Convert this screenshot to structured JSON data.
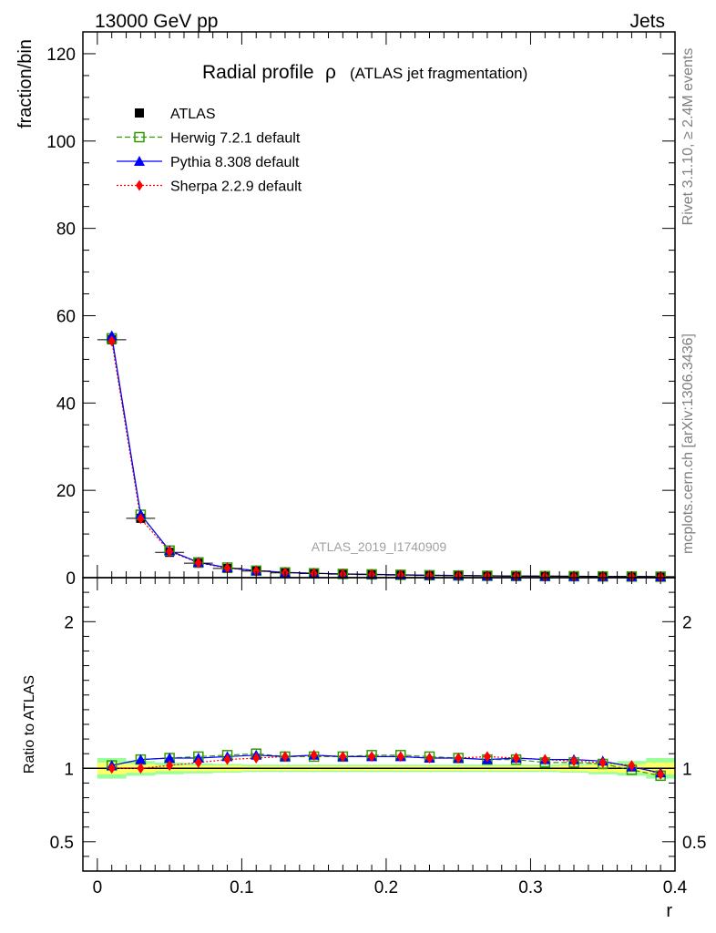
{
  "header": {
    "left": "13000 GeV pp",
    "right": "Jets"
  },
  "title": {
    "main": "Radial profile",
    "symbol": "ρ",
    "sub": "(ATLAS jet fragmentation)"
  },
  "side_labels": {
    "top": "Rivet 3.1.10, ≥ 2.4M events",
    "bottom": "mcplots.cern.ch [arXiv:1306.3436]"
  },
  "watermark": "ATLAS_2019_I1740909",
  "colors": {
    "data": "#000000",
    "herwig": "#339900",
    "pythia": "#0000ff",
    "sherpa": "#ff0000",
    "band_inner": "#ffff66",
    "band_outer": "#99ff99"
  },
  "chart_data": [
    {
      "type": "line",
      "ylabel": "fraction/bin",
      "xlim": [
        -0.01,
        0.4
      ],
      "ylim": [
        0,
        125
      ],
      "yticks": [
        0,
        20,
        40,
        60,
        80,
        100,
        120
      ],
      "x": [
        0.01,
        0.03,
        0.05,
        0.07,
        0.09,
        0.11,
        0.13,
        0.15,
        0.17,
        0.19,
        0.21,
        0.23,
        0.25,
        0.27,
        0.29,
        0.31,
        0.33,
        0.35,
        0.37,
        0.39
      ],
      "series": [
        {
          "name": "ATLAS",
          "key": "atlas",
          "values": [
            54.5,
            13.6,
            5.8,
            3.3,
            2.1,
            1.5,
            1.1,
            0.95,
            0.8,
            0.7,
            0.6,
            0.5,
            0.45,
            0.4,
            0.35,
            0.33,
            0.3,
            0.27,
            0.25,
            0.23
          ]
        },
        {
          "name": "Herwig 7.2.1 default",
          "key": "herwig",
          "values": [
            54.8,
            14.4,
            6.2,
            3.5,
            2.3,
            1.6,
            1.2,
            1.0,
            0.85,
            0.75,
            0.65,
            0.55,
            0.5,
            0.42,
            0.38,
            0.35,
            0.32,
            0.28,
            0.25,
            0.22
          ]
        },
        {
          "name": "Pythia 8.308 default",
          "key": "pythia",
          "values": [
            55.4,
            14.5,
            6.2,
            3.5,
            2.3,
            1.6,
            1.2,
            1.0,
            0.85,
            0.75,
            0.65,
            0.55,
            0.5,
            0.42,
            0.38,
            0.35,
            0.32,
            0.28,
            0.25,
            0.22
          ]
        },
        {
          "name": "Sherpa 2.2.9 default",
          "key": "sherpa",
          "values": [
            54.2,
            13.5,
            6.0,
            3.4,
            2.2,
            1.55,
            1.15,
            0.98,
            0.82,
            0.72,
            0.62,
            0.52,
            0.47,
            0.41,
            0.36,
            0.34,
            0.31,
            0.27,
            0.25,
            0.22
          ]
        }
      ]
    },
    {
      "type": "line",
      "xlabel": "r",
      "ylabel": "Ratio to ATLAS",
      "xlim": [
        -0.01,
        0.4
      ],
      "ylim": [
        0.3,
        2.3
      ],
      "yticks": [
        0.5,
        1,
        2
      ],
      "xticks": [
        0,
        0.1,
        0.2,
        0.3,
        0.4
      ],
      "x": [
        0.01,
        0.03,
        0.05,
        0.07,
        0.09,
        0.11,
        0.13,
        0.15,
        0.17,
        0.19,
        0.21,
        0.23,
        0.25,
        0.27,
        0.29,
        0.31,
        0.33,
        0.35,
        0.37,
        0.39
      ],
      "band_inner": [
        0.04,
        0.03,
        0.02,
        0.02,
        0.02,
        0.015,
        0.015,
        0.015,
        0.015,
        0.015,
        0.015,
        0.015,
        0.015,
        0.015,
        0.015,
        0.015,
        0.02,
        0.025,
        0.03,
        0.04
      ],
      "band_outer": [
        0.07,
        0.05,
        0.04,
        0.035,
        0.03,
        0.025,
        0.025,
        0.025,
        0.025,
        0.025,
        0.025,
        0.025,
        0.025,
        0.025,
        0.025,
        0.025,
        0.03,
        0.04,
        0.05,
        0.07
      ],
      "series": [
        {
          "name": "Herwig 7.2.1 default",
          "key": "herwig",
          "values": [
            1.02,
            1.06,
            1.07,
            1.08,
            1.09,
            1.1,
            1.08,
            1.08,
            1.08,
            1.09,
            1.09,
            1.08,
            1.07,
            1.06,
            1.06,
            1.04,
            1.04,
            1.03,
            0.99,
            0.95
          ]
        },
        {
          "name": "Pythia 8.308 default",
          "key": "pythia",
          "values": [
            1.02,
            1.06,
            1.07,
            1.07,
            1.08,
            1.09,
            1.08,
            1.09,
            1.08,
            1.08,
            1.08,
            1.07,
            1.07,
            1.06,
            1.07,
            1.06,
            1.06,
            1.05,
            1.01,
            0.97
          ]
        },
        {
          "name": "Sherpa 2.2.9 default",
          "key": "sherpa",
          "values": [
            1.0,
            1.0,
            1.02,
            1.04,
            1.06,
            1.07,
            1.08,
            1.09,
            1.08,
            1.08,
            1.08,
            1.07,
            1.07,
            1.08,
            1.07,
            1.06,
            1.05,
            1.04,
            1.02,
            0.96
          ]
        }
      ]
    }
  ]
}
